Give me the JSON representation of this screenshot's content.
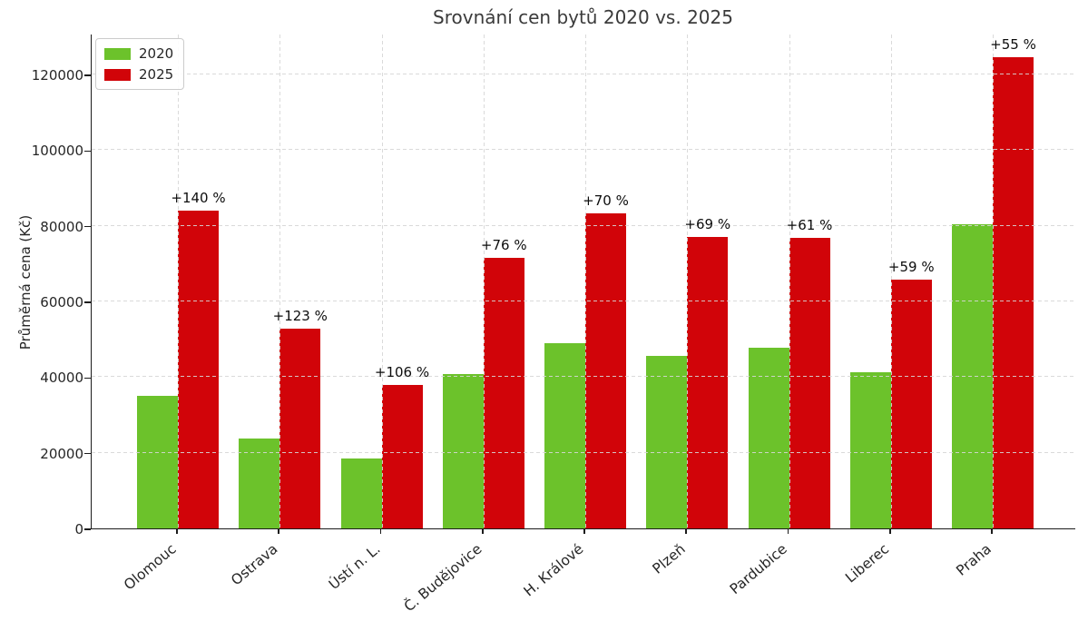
{
  "chart_data": {
    "type": "bar",
    "title": "Srovnání cen bytů 2020 vs. 2025",
    "ylabel": "Průměrná cena (Kč)",
    "xlabel": "",
    "categories": [
      "Olomouc",
      "Ostrava",
      "Ústí n. L.",
      "Č. Budějovice",
      "H. Králové",
      "Plzeň",
      "Pardubice",
      "Liberec",
      "Praha"
    ],
    "series": [
      {
        "name": "2020",
        "color": "#6cc22b",
        "values": [
          35000,
          23700,
          18400,
          40700,
          49000,
          45600,
          47700,
          41400,
          80300
        ]
      },
      {
        "name": "2025",
        "color": "#d10409",
        "values": [
          84000,
          52900,
          37900,
          71600,
          83300,
          77100,
          76800,
          65800,
          124500
        ]
      }
    ],
    "annotations": [
      "+140 %",
      "+123 %",
      "+106 %",
      "+76 %",
      "+70 %",
      "+69 %",
      "+61 %",
      "+59 %",
      "+55 %"
    ],
    "yticks": [
      0,
      20000,
      40000,
      60000,
      80000,
      100000,
      120000
    ],
    "ylim": [
      0,
      130800
    ],
    "grid": "both, dashed, drawn above bars",
    "legend_position": "upper left",
    "colors": {
      "grid": "#d6d6d6",
      "axis": "#1c1c1c",
      "title_text": "#3b3b3b",
      "tick_text": "#262626",
      "annotation_text": "#0d0d0d",
      "background": "#ffffff"
    }
  }
}
